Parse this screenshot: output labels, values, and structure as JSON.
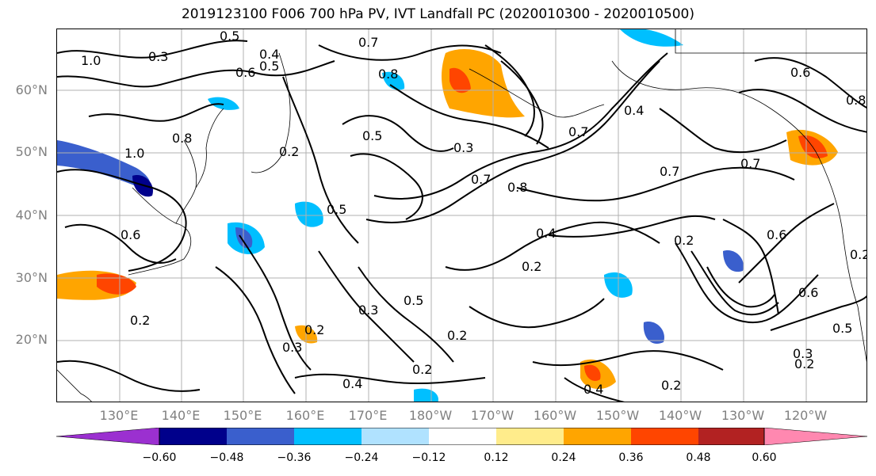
{
  "title": "2019123100 F006 700 hPa PV, IVT Landfall PC (2020010300 - 2020010500)",
  "lat_labels": [
    "60°N",
    "50°N",
    "40°N",
    "30°N",
    "20°N"
  ],
  "lon_labels": [
    "130°E",
    "140°E",
    "150°E",
    "160°E",
    "170°E",
    "180°W",
    "170°W",
    "160°W",
    "150°W",
    "140°W",
    "130°W",
    "120°W"
  ],
  "colorbar": {
    "colors": [
      "#9b30d0",
      "#00008b",
      "#3a5fcd",
      "#00bfff",
      "#b0e2ff",
      "#ffffff",
      "#ffec8b",
      "#ffa500",
      "#ff4500",
      "#b22222",
      "#ff88b0"
    ],
    "tick_labels": [
      "−0.60",
      "−0.48",
      "−0.36",
      "−0.24",
      "−0.12",
      "0.12",
      "0.24",
      "0.36",
      "0.48",
      "0.60"
    ]
  },
  "contour_labels": [
    "0.5",
    "0.3",
    "0.4",
    "0.5",
    "0.7",
    "0.8",
    "0.6",
    "1.0",
    "0.8",
    "0.2",
    "0.5",
    "0.3",
    "0.7",
    "0.8",
    "0.5",
    "0.4",
    "0.2",
    "0.3",
    "0.5",
    "0.2",
    "0.3",
    "0.2",
    "0.2",
    "0.2",
    "0.4",
    "0.2",
    "0.7",
    "0.2",
    "0.6",
    "0.7",
    "0.6",
    "0.5",
    "0.3",
    "0.2",
    "0.4",
    "0.8",
    "0.6",
    "0.4",
    "0.7",
    "1.0",
    "0.6",
    "0.2"
  ]
}
